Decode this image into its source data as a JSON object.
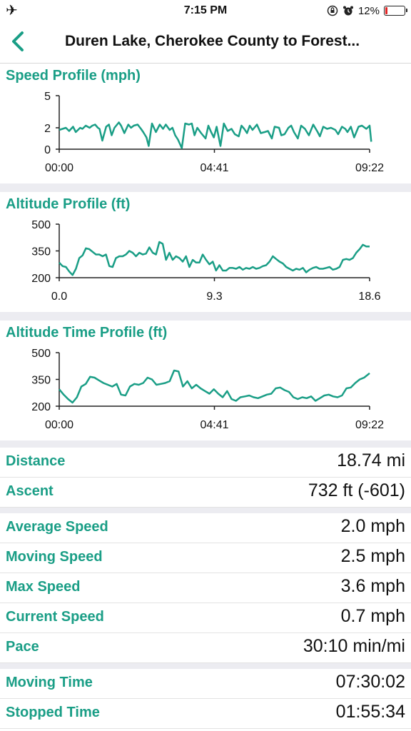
{
  "status": {
    "time": "7:15 PM",
    "battery": "12%",
    "battery_level": 0.12,
    "battery_color": "#e22222",
    "icons": [
      "airplane-icon",
      "rotation-lock-icon",
      "alarm-icon",
      "battery-icon"
    ]
  },
  "nav": {
    "title": "Duren Lake, Cherokee County to Forest..."
  },
  "accent": "#1a9e86",
  "charts": [
    {
      "title": "Speed Profile (mph)",
      "chart_data": {
        "type": "line",
        "ylim": [
          0,
          5
        ],
        "yticks": [
          "5",
          "2",
          "0"
        ],
        "ytick_values": [
          5,
          2,
          0
        ],
        "xlim": [
          0,
          562
        ],
        "xticks": [
          "00:00",
          "04:41",
          "09:22"
        ],
        "xtick_values": [
          0,
          281,
          562
        ],
        "x": [
          0,
          12,
          18,
          25,
          30,
          38,
          42,
          48,
          55,
          60,
          65,
          70,
          73,
          78,
          85,
          90,
          95,
          100,
          108,
          112,
          118,
          125,
          130,
          135,
          142,
          148,
          152,
          158,
          162,
          168,
          175,
          182,
          188,
          193,
          200,
          205,
          210,
          215,
          222,
          228,
          235,
          240,
          245,
          250,
          257,
          265,
          270,
          275,
          280,
          285,
          292,
          298,
          305,
          312,
          318,
          325,
          330,
          335,
          340,
          345,
          350,
          358,
          365,
          372,
          378,
          385,
          390,
          398,
          402,
          408,
          415,
          420,
          425,
          432,
          438,
          445,
          452,
          460,
          468,
          472,
          478,
          485,
          492,
          500,
          505,
          512,
          518,
          522,
          528,
          534,
          542,
          548,
          556,
          562,
          565
        ],
        "y": [
          1.8,
          2.0,
          1.7,
          2.1,
          1.6,
          2.0,
          1.9,
          2.2,
          2.0,
          2.2,
          2.3,
          2.0,
          1.9,
          0.8,
          2.1,
          2.3,
          1.3,
          2.0,
          2.5,
          2.2,
          1.5,
          2.3,
          2.0,
          2.2,
          2.3,
          1.9,
          1.6,
          1.1,
          0.3,
          2.4,
          1.6,
          2.3,
          1.9,
          2.3,
          1.8,
          2.0,
          1.3,
          0.9,
          0.1,
          2.4,
          2.3,
          2.4,
          1.3,
          2.0,
          1.5,
          1.0,
          2.2,
          1.6,
          1.1,
          2.1,
          0.3,
          2.4,
          1.7,
          1.9,
          1.4,
          1.2,
          2.2,
          1.9,
          1.5,
          2.2,
          1.8,
          2.3,
          1.5,
          1.6,
          1.7,
          1.0,
          2.1,
          2.0,
          1.3,
          1.4,
          2.0,
          2.2,
          1.6,
          1.0,
          2.2,
          1.9,
          1.3,
          2.3,
          1.6,
          1.2,
          2.1,
          1.9,
          2.0,
          1.8,
          1.4,
          2.1,
          1.9,
          1.6,
          2.1,
          1.1,
          2.1,
          2.2,
          1.9,
          2.2,
          0.7
        ]
      }
    },
    {
      "title": "Altitude Profile (ft)",
      "chart_data": {
        "type": "line",
        "ylim": [
          200,
          500
        ],
        "yticks": [
          "500",
          "350",
          "200"
        ],
        "ytick_values": [
          500,
          350,
          200
        ],
        "xlim": [
          0,
          18.6
        ],
        "xticks": [
          "0.0",
          "9.3",
          "18.6"
        ],
        "xtick_values": [
          0,
          9.3,
          18.6
        ],
        "x": [
          0,
          0.2,
          0.4,
          0.6,
          0.8,
          1.0,
          1.2,
          1.4,
          1.6,
          1.8,
          2.0,
          2.2,
          2.4,
          2.6,
          2.8,
          3.0,
          3.2,
          3.4,
          3.6,
          3.8,
          4.0,
          4.2,
          4.4,
          4.6,
          4.8,
          5.0,
          5.2,
          5.4,
          5.6,
          5.8,
          6.0,
          6.2,
          6.4,
          6.6,
          6.8,
          7.0,
          7.2,
          7.4,
          7.6,
          7.8,
          8.0,
          8.2,
          8.4,
          8.6,
          8.8,
          9.0,
          9.2,
          9.4,
          9.6,
          9.8,
          10.0,
          10.2,
          10.4,
          10.6,
          10.8,
          11.0,
          11.2,
          11.4,
          11.6,
          11.8,
          12.0,
          12.2,
          12.4,
          12.6,
          12.8,
          13.0,
          13.2,
          13.4,
          13.6,
          13.8,
          14.0,
          14.2,
          14.4,
          14.6,
          14.8,
          15.0,
          15.2,
          15.4,
          15.6,
          15.8,
          16.0,
          16.2,
          16.4,
          16.6,
          16.8,
          17.0,
          17.2,
          17.4,
          17.6,
          17.8,
          18.0,
          18.2,
          18.4,
          18.6
        ],
        "y": [
          285,
          265,
          260,
          235,
          215,
          250,
          310,
          325,
          365,
          360,
          345,
          330,
          330,
          320,
          330,
          265,
          260,
          310,
          320,
          320,
          330,
          350,
          340,
          320,
          340,
          330,
          335,
          370,
          340,
          330,
          400,
          390,
          300,
          340,
          300,
          320,
          310,
          290,
          320,
          260,
          300,
          285,
          285,
          330,
          300,
          275,
          290,
          240,
          270,
          240,
          240,
          255,
          255,
          250,
          260,
          245,
          255,
          250,
          260,
          250,
          255,
          265,
          270,
          290,
          320,
          305,
          290,
          280,
          260,
          250,
          240,
          250,
          245,
          255,
          230,
          245,
          255,
          260,
          250,
          250,
          255,
          260,
          245,
          250,
          260,
          300,
          305,
          300,
          310,
          340,
          360,
          385,
          375,
          375
        ]
      }
    },
    {
      "title": "Altitude Time Profile (ft)",
      "chart_data": {
        "type": "line",
        "ylim": [
          200,
          500
        ],
        "yticks": [
          "500",
          "350",
          "200"
        ],
        "ytick_values": [
          500,
          350,
          200
        ],
        "xlim": [
          0,
          562
        ],
        "xticks": [
          "00:00",
          "04:41",
          "09:22"
        ],
        "xtick_values": [
          0,
          281,
          562
        ],
        "x": [
          0,
          8,
          16,
          24,
          32,
          40,
          48,
          56,
          64,
          72,
          80,
          88,
          96,
          104,
          112,
          120,
          128,
          136,
          144,
          152,
          160,
          168,
          176,
          184,
          192,
          200,
          208,
          216,
          224,
          232,
          240,
          248,
          256,
          264,
          272,
          280,
          288,
          296,
          304,
          312,
          320,
          328,
          336,
          344,
          352,
          360,
          368,
          376,
          384,
          392,
          400,
          408,
          416,
          424,
          432,
          440,
          448,
          456,
          464,
          472,
          480,
          488,
          496,
          504,
          512,
          520,
          528,
          536,
          544,
          552,
          562
        ],
        "y": [
          295,
          265,
          240,
          220,
          250,
          310,
          325,
          365,
          360,
          345,
          330,
          320,
          310,
          325,
          265,
          260,
          310,
          325,
          320,
          330,
          360,
          350,
          320,
          325,
          330,
          340,
          400,
          395,
          310,
          340,
          300,
          320,
          300,
          285,
          270,
          295,
          270,
          250,
          285,
          240,
          230,
          250,
          255,
          260,
          250,
          245,
          255,
          265,
          270,
          300,
          305,
          290,
          280,
          250,
          240,
          250,
          245,
          255,
          230,
          245,
          260,
          265,
          255,
          250,
          260,
          300,
          305,
          330,
          350,
          360,
          385
        ]
      }
    }
  ],
  "stats_groups": [
    [
      {
        "label": "Distance",
        "value": "18.74 mi"
      },
      {
        "label": "Ascent",
        "value": "732 ft (-601)"
      }
    ],
    [
      {
        "label": "Average Speed",
        "value": "2.0 mph"
      },
      {
        "label": "Moving Speed",
        "value": "2.5 mph"
      },
      {
        "label": "Max Speed",
        "value": "3.6 mph"
      },
      {
        "label": "Current Speed",
        "value": "0.7 mph"
      },
      {
        "label": "Pace",
        "value": "30:10 min/mi"
      }
    ],
    [
      {
        "label": "Moving Time",
        "value": "07:30:02"
      },
      {
        "label": "Stopped Time",
        "value": "01:55:34"
      }
    ]
  ]
}
